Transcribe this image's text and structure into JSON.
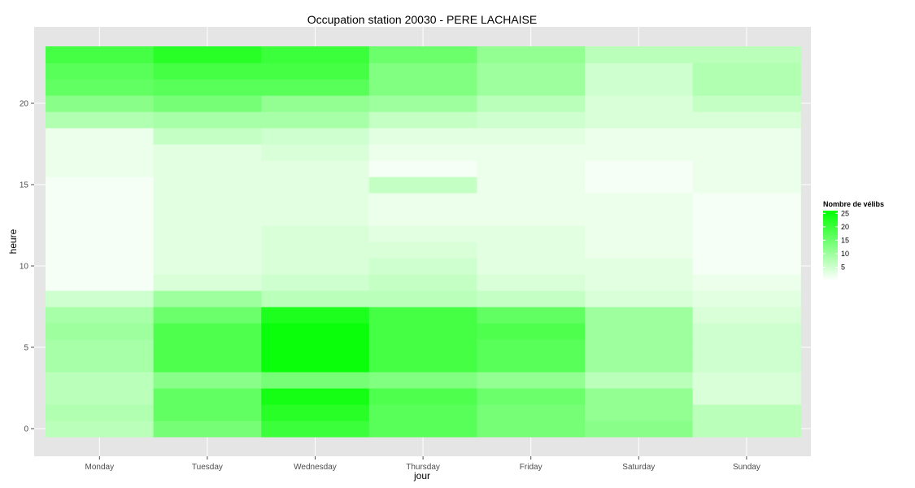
{
  "chart_data": {
    "type": "heatmap",
    "title": "Occupation station 20030 - PERE LACHAISE",
    "xlabel": "jour",
    "ylabel": "heure",
    "x_categories": [
      "Monday",
      "Tuesday",
      "Wednesday",
      "Thursday",
      "Friday",
      "Saturday",
      "Sunday"
    ],
    "y_range": [
      0,
      23
    ],
    "y_ticks": [
      0,
      5,
      10,
      15,
      20
    ],
    "grid": true,
    "colors": {
      "low": "#ffffff",
      "high": "#00ff00",
      "panel": "#e5e5e5",
      "grid": "#ffffff",
      "tick": "#4d4d4d"
    },
    "legend": {
      "title": "Nombre de vélibs",
      "placement": "right",
      "breaks": [
        5,
        10,
        15,
        20,
        25
      ],
      "range": [
        0,
        26
      ]
    },
    "values": [
      [
        7,
        14,
        20,
        17,
        14,
        12,
        7
      ],
      [
        8,
        16,
        22,
        17,
        14,
        11,
        7
      ],
      [
        7,
        16,
        24,
        18,
        15,
        11,
        4
      ],
      [
        7,
        12,
        14,
        13,
        11,
        7,
        4
      ],
      [
        9,
        18,
        25,
        19,
        17,
        10,
        5
      ],
      [
        9,
        18,
        25,
        19,
        17,
        10,
        5
      ],
      [
        10,
        18,
        25,
        19,
        18,
        10,
        5
      ],
      [
        9,
        15,
        23,
        19,
        16,
        10,
        4
      ],
      [
        5,
        10,
        7,
        7,
        6,
        4,
        3
      ],
      [
        1,
        4,
        5,
        6,
        4,
        3,
        2
      ],
      [
        1,
        3,
        4,
        5,
        3,
        3,
        1
      ],
      [
        1,
        3,
        4,
        4,
        3,
        2,
        1
      ],
      [
        1,
        3,
        4,
        3,
        3,
        2,
        1
      ],
      [
        1,
        3,
        3,
        2,
        2,
        2,
        1
      ],
      [
        1,
        3,
        3,
        2,
        2,
        2,
        1
      ],
      [
        1,
        3,
        3,
        6,
        2,
        1,
        2
      ],
      [
        2,
        3,
        3,
        1,
        2,
        1,
        2
      ],
      [
        2,
        3,
        4,
        2,
        2,
        2,
        2
      ],
      [
        2,
        6,
        5,
        3,
        3,
        2,
        2
      ],
      [
        8,
        9,
        9,
        6,
        5,
        4,
        4
      ],
      [
        12,
        14,
        11,
        10,
        7,
        4,
        6
      ],
      [
        16,
        17,
        17,
        13,
        10,
        5,
        8
      ],
      [
        17,
        19,
        19,
        13,
        10,
        5,
        8
      ],
      [
        19,
        22,
        20,
        15,
        11,
        7,
        7
      ]
    ]
  }
}
